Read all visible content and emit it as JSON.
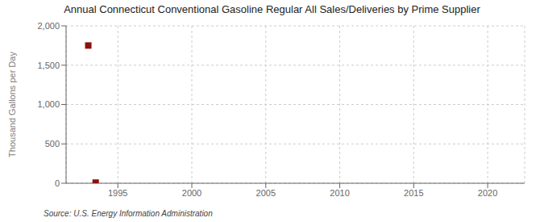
{
  "chart_data": {
    "type": "scatter",
    "title": "Annual Connecticut Conventional Gasoline Regular All Sales/Deliveries by Prime Supplier",
    "ylabel": "Thousand Gallons per Day",
    "source": "Source: U.S. Energy Information Administration",
    "x": [
      1993,
      1993.5
    ],
    "values": [
      1750,
      8
    ],
    "color": "#8b1010",
    "marker": "square",
    "xlim": [
      1991.5,
      2022.5
    ],
    "xticks": [
      1995,
      2000,
      2005,
      2010,
      2015,
      2020
    ],
    "ylim": [
      0,
      2000
    ],
    "yticks": [
      0,
      500,
      {
        "value": 1000,
        "label": "1,000"
      },
      {
        "value": 1500,
        "label": "1,500"
      },
      {
        "value": 2000,
        "label": "2,000"
      }
    ],
    "grid": true
  }
}
